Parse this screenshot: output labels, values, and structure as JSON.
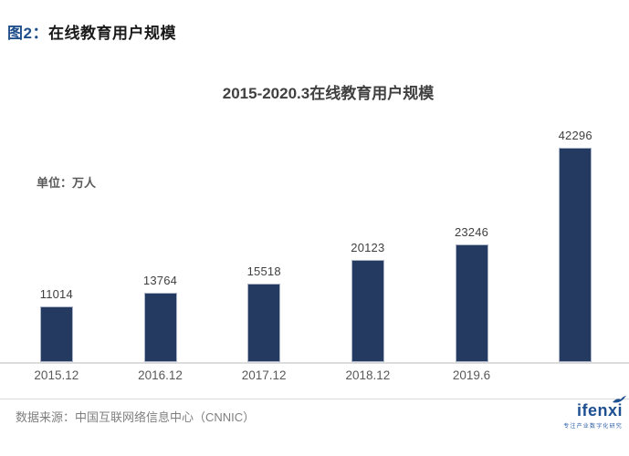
{
  "figure": {
    "label_prefix": "图2：",
    "label_title": "在线教育用户规模"
  },
  "chart_data": {
    "type": "bar",
    "title": "2015-2020.3在线教育用户规模",
    "unit_label": "单位：万人",
    "categories": [
      "2015.12",
      "2016.12",
      "2017.12",
      "2018.12",
      "2019.6",
      ""
    ],
    "values": [
      11014,
      13764,
      15518,
      20123,
      23246,
      42296
    ],
    "xlabel": "",
    "ylabel": "万人",
    "ylim": [
      0,
      45000
    ],
    "grid": false,
    "legend": null,
    "bar_color": "#243a60",
    "value_label_color": "#404040",
    "axis_label_color": "#595959"
  },
  "footer": {
    "source": "数据来源：中国互联网络信息中心（CNNIC）",
    "logo_text": "ifenxi",
    "logo_tagline": "专注产业数字化研究",
    "logo_color": "#1d4f91"
  }
}
